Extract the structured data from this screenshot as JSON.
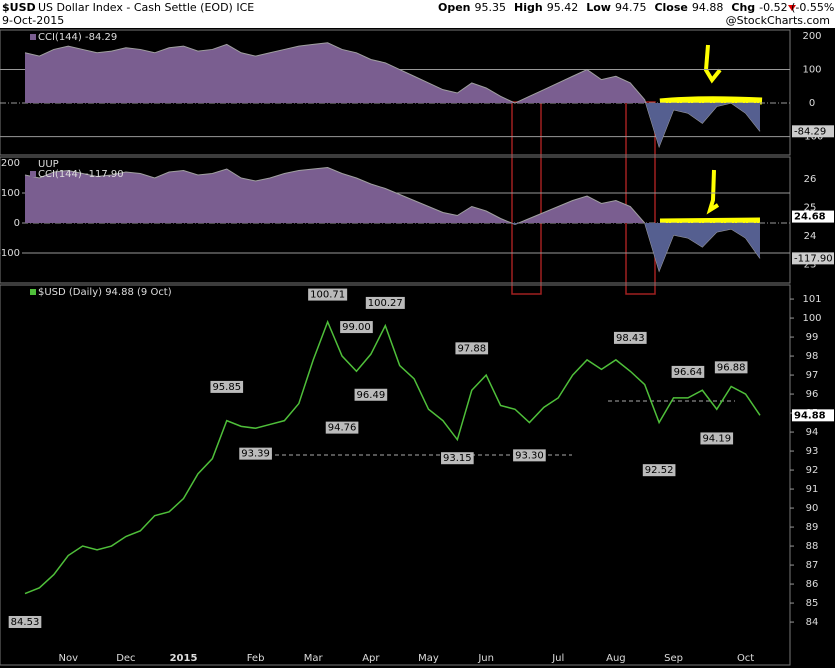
{
  "header": {
    "symbol": "$USD",
    "name": "US Dollar Index - Cash Settle (EOD) ICE",
    "date": "9-Oct-2015",
    "credit": "@StockCharts.com",
    "quote": [
      {
        "label": "Open",
        "value": "95.35"
      },
      {
        "label": "High",
        "value": "95.42"
      },
      {
        "label": "Low",
        "value": "94.75"
      },
      {
        "label": "Close",
        "value": "94.88"
      },
      {
        "label": "Chg",
        "value": "-0.52 (-0.55%)"
      }
    ]
  },
  "chart_data": [
    {
      "type": "cci",
      "legend": "CCI(144) -84.29",
      "color": "#a0a0a0",
      "fill": "#7a5e90",
      "ylim": [
        -155,
        218
      ],
      "yticks": [
        -100,
        0,
        100,
        200
      ],
      "values": [
        150,
        140,
        160,
        170,
        160,
        150,
        155,
        165,
        160,
        150,
        165,
        170,
        155,
        160,
        175,
        150,
        140,
        150,
        160,
        170,
        175,
        180,
        160,
        150,
        130,
        120,
        100,
        80,
        60,
        40,
        30,
        60,
        45,
        20,
        0,
        20,
        40,
        60,
        80,
        100,
        70,
        80,
        60,
        10,
        -130,
        -20,
        -30,
        -60,
        -10,
        0,
        -30,
        -84.29
      ]
    },
    {
      "type": "cci",
      "legend": "CCI(144) -117.90",
      "symbol": "UUP",
      "color": "#a0a0a0",
      "fill": "#7a5e90",
      "ylim": [
        -200,
        220
      ],
      "yticks": [
        -100,
        0,
        100,
        200
      ],
      "y2lim": [
        22.35,
        26.77
      ],
      "y2ticks": [
        23,
        24,
        25,
        26
      ],
      "uup_close": 24.68,
      "values": [
        160,
        150,
        170,
        175,
        165,
        155,
        160,
        170,
        165,
        150,
        170,
        175,
        160,
        165,
        180,
        150,
        140,
        150,
        165,
        175,
        180,
        185,
        165,
        150,
        130,
        115,
        95,
        75,
        55,
        35,
        25,
        55,
        40,
        15,
        -5,
        15,
        35,
        55,
        75,
        90,
        65,
        75,
        55,
        0,
        -160,
        -40,
        -50,
        -80,
        -30,
        -20,
        -50,
        -117.9
      ],
      "value_labels": [
        null,
        null,
        null,
        null,
        null,
        null,
        null,
        null,
        null,
        null,
        null,
        null,
        null,
        null,
        null,
        null,
        null,
        null,
        null,
        null,
        null,
        null,
        null,
        null,
        null,
        null,
        null,
        null,
        null,
        null,
        null,
        null,
        null,
        null,
        null,
        null,
        null,
        null,
        null,
        null,
        null,
        null,
        null,
        null,
        null,
        null,
        null,
        null,
        null,
        null,
        null,
        "-117.90"
      ]
    },
    {
      "type": "line",
      "legend": "$USD (Daily) 94.88 (9 Oct)",
      "color": "#4fbf3a",
      "ylim": [
        81.74,
        101.74
      ],
      "yticks": [
        84,
        85,
        86,
        87,
        88,
        89,
        90,
        91,
        92,
        93,
        94,
        95,
        96,
        97,
        98,
        99,
        100,
        101
      ],
      "categories": [
        null,
        null,
        null,
        "Nov",
        null,
        null,
        null,
        "Dec",
        null,
        null,
        null,
        "2015",
        null,
        null,
        null,
        null,
        "Feb",
        null,
        null,
        null,
        "Mar",
        null,
        null,
        null,
        "Apr",
        null,
        null,
        null,
        "May",
        null,
        null,
        null,
        "Jun",
        null,
        null,
        null,
        null,
        "Jul",
        null,
        null,
        null,
        "Aug",
        null,
        null,
        null,
        "Sep",
        null,
        null,
        null,
        null,
        "Oct",
        null
      ],
      "values": [
        85.5,
        85.8,
        86.5,
        87.5,
        88.0,
        87.8,
        88.0,
        88.5,
        88.8,
        89.6,
        89.8,
        90.5,
        91.8,
        92.6,
        94.6,
        94.3,
        94.2,
        94.4,
        94.6,
        95.5,
        97.8,
        99.8,
        98.0,
        97.2,
        98.1,
        99.6,
        97.5,
        96.8,
        95.2,
        94.6,
        93.6,
        96.2,
        97.0,
        95.4,
        95.2,
        94.5,
        95.3,
        95.8,
        97.0,
        97.8,
        97.3,
        97.8,
        97.2,
        96.5,
        94.5,
        95.8,
        95.8,
        96.2,
        95.2,
        96.4,
        96.0,
        94.88
      ],
      "high_labels": [
        null,
        null,
        null,
        null,
        null,
        null,
        null,
        null,
        null,
        null,
        null,
        null,
        null,
        null,
        "95.85",
        null,
        null,
        null,
        null,
        null,
        null,
        "100.71",
        null,
        "99.00",
        null,
        "100.27",
        null,
        null,
        null,
        null,
        null,
        "97.88",
        null,
        null,
        null,
        null,
        null,
        null,
        null,
        null,
        null,
        null,
        "98.43",
        null,
        null,
        null,
        "96.64",
        null,
        null,
        "96.88",
        null,
        null
      ],
      "low_labels": [
        "84.53",
        null,
        null,
        null,
        null,
        null,
        null,
        null,
        null,
        null,
        null,
        null,
        null,
        null,
        null,
        null,
        "93.39",
        null,
        null,
        null,
        null,
        null,
        "94.76",
        null,
        "96.49",
        null,
        null,
        null,
        null,
        null,
        "93.15",
        null,
        null,
        null,
        null,
        "93.30",
        null,
        null,
        null,
        null,
        null,
        null,
        null,
        null,
        "92.52",
        null,
        null,
        null,
        "94.19",
        null,
        null,
        null
      ]
    }
  ]
}
